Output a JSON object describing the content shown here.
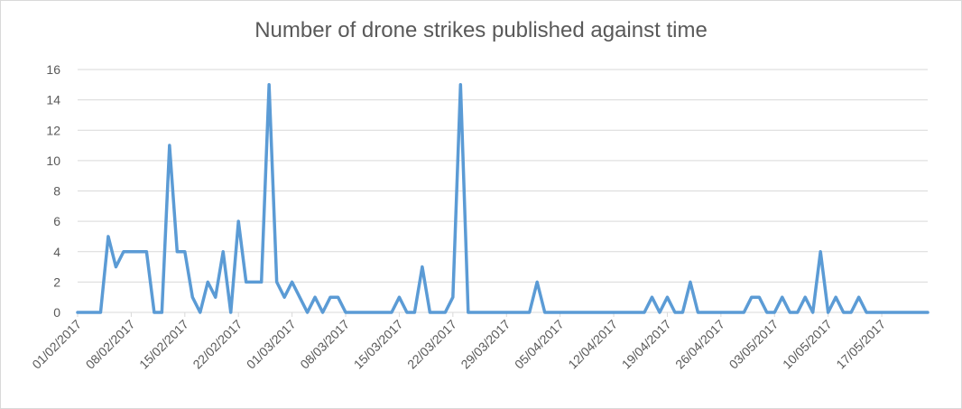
{
  "chart_data": {
    "type": "line",
    "title": "Number of drone strikes published against time",
    "xlabel": "",
    "ylabel": "",
    "ylim": [
      0,
      16
    ],
    "yticks": [
      0,
      2,
      4,
      6,
      8,
      10,
      12,
      14,
      16
    ],
    "grid": true,
    "legend": "none",
    "x_start": "01/02/2017",
    "x_end": "21/05/2017",
    "xtick_labels": [
      "01/02/2017",
      "08/02/2017",
      "15/02/2017",
      "22/02/2017",
      "01/03/2017",
      "08/03/2017",
      "15/03/2017",
      "22/03/2017",
      "29/03/2017",
      "05/04/2017",
      "12/04/2017",
      "19/04/2017",
      "26/04/2017",
      "03/05/2017",
      "10/05/2017",
      "17/05/2017"
    ],
    "series": [
      {
        "color": "#5b9bd5",
        "values": [
          0,
          0,
          0,
          0,
          5,
          3,
          4,
          4,
          4,
          4,
          0,
          0,
          11,
          4,
          4,
          1,
          0,
          2,
          1,
          4,
          0,
          6,
          2,
          2,
          2,
          15,
          2,
          1,
          2,
          1,
          0,
          1,
          0,
          1,
          1,
          0,
          0,
          0,
          0,
          0,
          0,
          0,
          1,
          0,
          0,
          3,
          0,
          0,
          0,
          1,
          15,
          0,
          0,
          0,
          0,
          0,
          0,
          0,
          0,
          0,
          2,
          0,
          0,
          0,
          0,
          0,
          0,
          0,
          0,
          0,
          0,
          0,
          0,
          0,
          0,
          1,
          0,
          1,
          0,
          0,
          2,
          0,
          0,
          0,
          0,
          0,
          0,
          0,
          1,
          1,
          0,
          0,
          1,
          0,
          0,
          1,
          0,
          4,
          0,
          1,
          0,
          0,
          1,
          0,
          0,
          0,
          0,
          0,
          0,
          0,
          0,
          0
        ]
      }
    ]
  }
}
